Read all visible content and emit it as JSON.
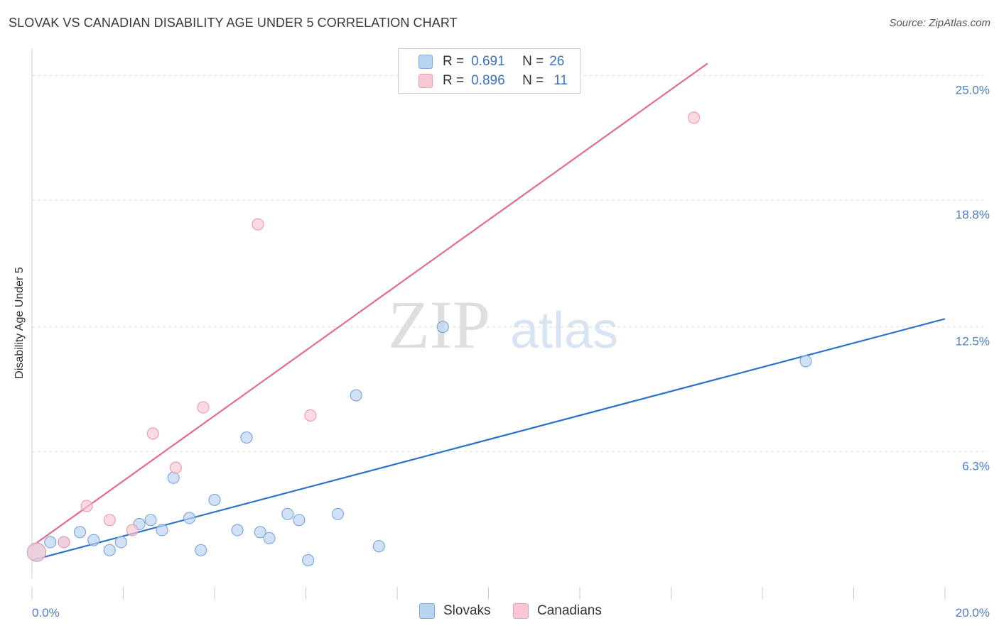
{
  "title": "SLOVAK VS CANADIAN DISABILITY AGE UNDER 5 CORRELATION CHART",
  "source": "Source: ZipAtlas.com",
  "watermark": {
    "zip": "ZIP",
    "atlas": "atlas"
  },
  "legend": {
    "slovaks": {
      "r_label": "R =",
      "r_value": "0.691",
      "n_label": "N =",
      "n_value": "26"
    },
    "canadians": {
      "r_label": "R =",
      "r_value": "0.896",
      "n_label": "N =",
      "n_value": "11"
    }
  },
  "colors": {
    "slovak_fill": "#b9d3f3",
    "slovak_stroke": "#7fa8de",
    "slovak_line": "#2f72c9",
    "canadian_fill": "#f9c6d3",
    "canadian_stroke": "#ec9fb5",
    "canadian_line": "#e46a91",
    "tick_label": "#4a7fcb",
    "grid": "#d9d9d9"
  },
  "chart_data": {
    "type": "scatter",
    "title": "SLOVAK VS CANADIAN DISABILITY AGE UNDER 5 CORRELATION CHART",
    "xlabel": "",
    "ylabel": "Disability Age Under 5",
    "xlim": [
      0,
      20
    ],
    "ylim": [
      0,
      26
    ],
    "x_tick_labels": [
      {
        "value": 0,
        "label": "0.0%"
      },
      {
        "value": 20,
        "label": "20.0%"
      }
    ],
    "y_tick_labels": [
      {
        "value": 6.3,
        "label": "6.3%"
      },
      {
        "value": 12.5,
        "label": "12.5%"
      },
      {
        "value": 18.8,
        "label": "18.8%"
      },
      {
        "value": 25.0,
        "label": "25.0%"
      }
    ],
    "grid": true,
    "legend_position": "top-center",
    "series": [
      {
        "name": "Slovaks",
        "points": [
          [
            0.1,
            1.3
          ],
          [
            0.4,
            1.8
          ],
          [
            0.7,
            1.8
          ],
          [
            1.05,
            2.3
          ],
          [
            1.35,
            1.9
          ],
          [
            1.7,
            1.4
          ],
          [
            1.95,
            1.8
          ],
          [
            2.35,
            2.7
          ],
          [
            2.6,
            2.9
          ],
          [
            2.85,
            2.4
          ],
          [
            3.1,
            5.0
          ],
          [
            3.45,
            3.0
          ],
          [
            3.7,
            1.4
          ],
          [
            4.0,
            3.9
          ],
          [
            4.5,
            2.4
          ],
          [
            4.7,
            7.0
          ],
          [
            5.0,
            2.3
          ],
          [
            5.2,
            2.0
          ],
          [
            5.6,
            3.2
          ],
          [
            5.85,
            2.9
          ],
          [
            6.05,
            0.9
          ],
          [
            6.7,
            3.2
          ],
          [
            7.1,
            9.1
          ],
          [
            7.6,
            1.6
          ],
          [
            9.0,
            12.5
          ],
          [
            16.95,
            10.8
          ]
        ],
        "trend": [
          [
            0,
            0.9
          ],
          [
            20,
            12.9
          ]
        ]
      },
      {
        "name": "Canadians",
        "points": [
          [
            0.1,
            1.3
          ],
          [
            0.7,
            1.8
          ],
          [
            1.2,
            3.6
          ],
          [
            1.7,
            2.9
          ],
          [
            2.2,
            2.4
          ],
          [
            2.65,
            7.2
          ],
          [
            3.15,
            5.5
          ],
          [
            3.75,
            8.5
          ],
          [
            4.95,
            17.6
          ],
          [
            6.1,
            8.1
          ],
          [
            14.5,
            22.9
          ]
        ],
        "trend": [
          [
            0,
            1.6
          ],
          [
            14.8,
            25.6
          ]
        ]
      }
    ]
  },
  "bottom_legend": {
    "slovaks": "Slovaks",
    "canadians": "Canadians"
  }
}
